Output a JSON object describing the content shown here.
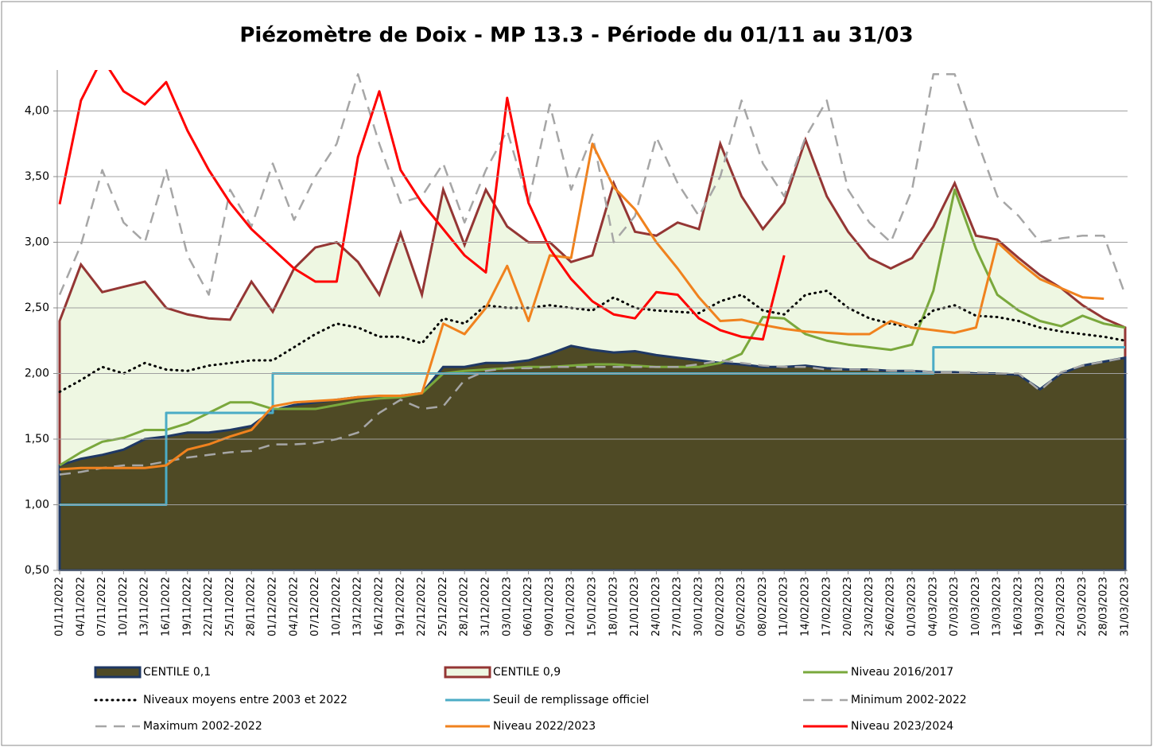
{
  "chart_data": {
    "type": "line",
    "title": "Piézomètre de Doix - MP 13.3 - Période du 01/11 au 31/03",
    "categories": [
      "01/11/2022",
      "04/11/2022",
      "07/11/2022",
      "10/11/2022",
      "13/11/2022",
      "16/11/2022",
      "19/11/2022",
      "22/11/2022",
      "25/11/2022",
      "28/11/2022",
      "01/12/2022",
      "04/12/2022",
      "07/12/2022",
      "10/12/2022",
      "13/12/2022",
      "16/12/2022",
      "19/12/2022",
      "22/12/2022",
      "25/12/2022",
      "28/12/2022",
      "31/12/2022",
      "03/01/2023",
      "06/01/2023",
      "09/01/2023",
      "12/01/2023",
      "15/01/2023",
      "18/01/2023",
      "21/01/2023",
      "24/01/2023",
      "27/01/2023",
      "30/01/2023",
      "02/02/2023",
      "05/02/2023",
      "08/02/2023",
      "11/02/2023",
      "14/02/2023",
      "17/02/2023",
      "20/02/2023",
      "23/02/2023",
      "26/02/2023",
      "01/03/2023",
      "04/03/2023",
      "07/03/2023",
      "10/03/2023",
      "13/03/2023",
      "16/03/2023",
      "19/03/2023",
      "22/03/2023",
      "25/03/2023",
      "28/03/2023",
      "31/03/2023"
    ],
    "ylim": [
      0.5,
      4.3
    ],
    "yticks": [
      {
        "value": 0.5,
        "label": "0,50"
      },
      {
        "value": 1,
        "label": "1,00"
      },
      {
        "value": 1.5,
        "label": "1,50"
      },
      {
        "value": 2,
        "label": "2,00"
      },
      {
        "value": 2.5,
        "label": "2,50"
      },
      {
        "value": 3,
        "label": "3,00"
      },
      {
        "value": 3.5,
        "label": "3,50"
      },
      {
        "value": 4,
        "label": "4,00"
      }
    ],
    "grid": true,
    "legend": "bottom",
    "series": [
      {
        "name": "CENTILE 0,1",
        "style": "area",
        "color": "#4f4a25",
        "edge": "#1f3864",
        "values": [
          1.3,
          1.35,
          1.38,
          1.42,
          1.5,
          1.52,
          1.55,
          1.55,
          1.57,
          1.6,
          1.72,
          1.76,
          1.78,
          1.8,
          1.82,
          1.82,
          1.83,
          1.85,
          2.05,
          2.05,
          2.08,
          2.08,
          2.1,
          2.15,
          2.21,
          2.18,
          2.16,
          2.17,
          2.14,
          2.12,
          2.1,
          2.08,
          2.07,
          2.05,
          2.05,
          2.06,
          2.04,
          2.03,
          2.03,
          2.02,
          2.02,
          2.01,
          2.01,
          2.0,
          2.0,
          1.99,
          1.88,
          2.0,
          2.06,
          2.09,
          2.12
        ]
      },
      {
        "name": "CENTILE 0,9",
        "style": "area",
        "color": "#eef7e2",
        "edge": "#943634",
        "values": [
          2.4,
          2.83,
          2.62,
          2.66,
          2.7,
          2.5,
          2.45,
          2.42,
          2.41,
          2.7,
          2.47,
          2.8,
          2.96,
          3.0,
          2.85,
          2.6,
          3.07,
          2.6,
          3.4,
          2.98,
          3.4,
          3.12,
          3.0,
          3.0,
          2.85,
          2.9,
          3.45,
          3.08,
          3.05,
          3.15,
          3.1,
          3.75,
          3.35,
          3.1,
          3.3,
          3.78,
          3.35,
          3.08,
          2.88,
          2.8,
          2.88,
          3.12,
          3.45,
          3.05,
          3.02,
          2.88,
          2.75,
          2.65,
          2.52,
          2.42,
          2.35
        ]
      },
      {
        "name": "Niveau 2016/2017",
        "style": "line",
        "color": "#7aa83c",
        "values": [
          1.3,
          1.4,
          1.48,
          1.51,
          1.57,
          1.57,
          1.62,
          1.7,
          1.78,
          1.78,
          1.73,
          1.73,
          1.73,
          1.76,
          1.79,
          1.81,
          1.82,
          1.85,
          2.0,
          2.02,
          2.03,
          2.04,
          2.05,
          2.05,
          2.06,
          2.07,
          2.07,
          2.06,
          2.05,
          2.05,
          2.05,
          2.08,
          2.15,
          2.43,
          2.42,
          2.3,
          2.25,
          2.22,
          2.2,
          2.18,
          2.22,
          2.63,
          3.4,
          2.95,
          2.6,
          2.48,
          2.4,
          2.36,
          2.44,
          2.38,
          2.35
        ]
      },
      {
        "name": "Niveaux moyens entre 2003 et 2022",
        "style": "line",
        "dash": "dotted",
        "color": "#000000",
        "values": [
          1.86,
          1.95,
          2.05,
          2.0,
          2.08,
          2.03,
          2.02,
          2.06,
          2.08,
          2.1,
          2.1,
          2.2,
          2.3,
          2.38,
          2.35,
          2.28,
          2.28,
          2.23,
          2.42,
          2.38,
          2.52,
          2.5,
          2.5,
          2.52,
          2.5,
          2.48,
          2.58,
          2.5,
          2.48,
          2.47,
          2.46,
          2.55,
          2.6,
          2.48,
          2.45,
          2.6,
          2.63,
          2.5,
          2.42,
          2.38,
          2.35,
          2.48,
          2.52,
          2.44,
          2.43,
          2.4,
          2.35,
          2.32,
          2.3,
          2.28,
          2.25
        ]
      },
      {
        "name": "Seuil de remplissage officiel",
        "style": "step",
        "color": "#4bacc6",
        "values": [
          1.0,
          1.0,
          1.0,
          1.0,
          1.0,
          1.7,
          1.7,
          1.7,
          1.7,
          1.7,
          2.0,
          2.0,
          2.0,
          2.0,
          2.0,
          2.0,
          2.0,
          2.0,
          2.0,
          2.0,
          2.0,
          2.0,
          2.0,
          2.0,
          2.0,
          2.0,
          2.0,
          2.0,
          2.0,
          2.0,
          2.0,
          2.0,
          2.0,
          2.0,
          2.0,
          2.0,
          2.0,
          2.0,
          2.0,
          2.0,
          2.0,
          2.2,
          2.2,
          2.2,
          2.2,
          2.2,
          2.2,
          2.2,
          2.2,
          2.2,
          2.2
        ]
      },
      {
        "name": "Minimum 2002-2022",
        "style": "line",
        "dash": "dashed",
        "color": "#a6a6a6",
        "values": [
          1.23,
          1.25,
          1.28,
          1.3,
          1.3,
          1.33,
          1.36,
          1.38,
          1.4,
          1.41,
          1.46,
          1.46,
          1.47,
          1.5,
          1.55,
          1.7,
          1.8,
          1.73,
          1.75,
          1.95,
          2.02,
          2.04,
          2.04,
          2.05,
          2.05,
          2.05,
          2.05,
          2.05,
          2.05,
          2.05,
          2.07,
          2.1,
          2.08,
          2.06,
          2.05,
          2.05,
          2.03,
          2.03,
          2.03,
          2.02,
          2.02,
          2.01,
          2.01,
          2.01,
          2.0,
          2.0,
          1.87,
          2.01,
          2.06,
          2.09,
          2.12
        ]
      },
      {
        "name": "Maximum 2002-2022",
        "style": "line",
        "dash": "dashed",
        "color": "#a6a6a6",
        "values": [
          2.6,
          2.98,
          3.55,
          3.15,
          3.0,
          3.55,
          2.9,
          2.6,
          3.4,
          3.12,
          3.6,
          3.17,
          3.5,
          3.75,
          4.28,
          3.75,
          3.3,
          3.35,
          3.6,
          3.15,
          3.55,
          3.85,
          3.3,
          4.05,
          3.4,
          3.82,
          3.0,
          3.2,
          3.8,
          3.45,
          3.2,
          3.5,
          4.08,
          3.6,
          3.35,
          3.8,
          4.08,
          3.4,
          3.15,
          3.0,
          3.4,
          4.28,
          4.28,
          3.8,
          3.35,
          3.2,
          3.0,
          3.03,
          3.05,
          3.05,
          2.6
        ]
      },
      {
        "name": "Niveau 2022/2023",
        "style": "line",
        "color": "#f0821e",
        "values": [
          1.27,
          1.28,
          1.28,
          1.28,
          1.28,
          1.3,
          1.42,
          1.46,
          1.52,
          1.57,
          1.75,
          1.78,
          1.79,
          1.8,
          1.82,
          1.83,
          1.83,
          1.85,
          2.38,
          2.3,
          2.5,
          2.82,
          2.4,
          2.9,
          2.88,
          3.75,
          3.42,
          3.25,
          3.0,
          2.8,
          2.58,
          2.4,
          2.41,
          2.37,
          2.34,
          2.32,
          2.31,
          2.3,
          2.3,
          2.4,
          2.35,
          2.33,
          2.31,
          2.35,
          3.0,
          2.85,
          2.72,
          2.65,
          2.58,
          2.57,
          null
        ]
      },
      {
        "name": "Niveau 2023/2024",
        "style": "line",
        "color": "#ff0000",
        "values": [
          3.29,
          4.08,
          4.4,
          4.15,
          4.05,
          4.22,
          3.85,
          3.55,
          3.3,
          3.1,
          2.95,
          2.8,
          2.7,
          2.7,
          3.65,
          4.15,
          3.55,
          3.3,
          3.1,
          2.9,
          2.77,
          4.1,
          3.3,
          2.95,
          2.72,
          2.55,
          2.45,
          2.42,
          2.62,
          2.6,
          2.42,
          2.33,
          2.28,
          2.26,
          2.9,
          null,
          null,
          null,
          null,
          null,
          null,
          null,
          null,
          null,
          null,
          null,
          null,
          null,
          null,
          null,
          null
        ]
      }
    ]
  }
}
